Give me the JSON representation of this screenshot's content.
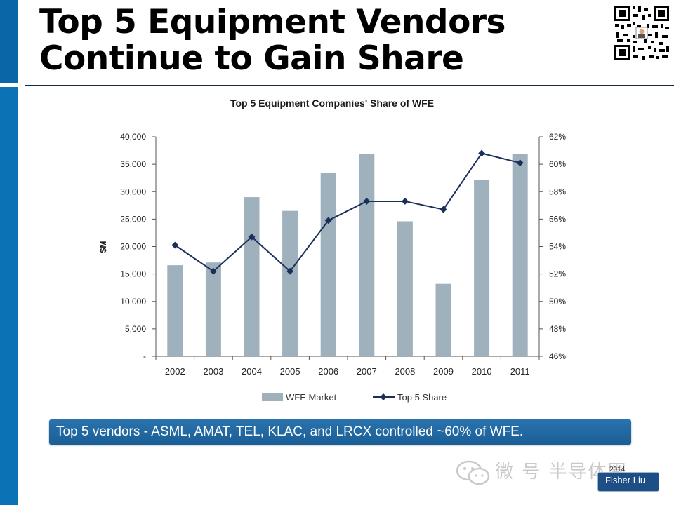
{
  "slide": {
    "title_line1": "Top 5 Equipment Vendors",
    "title_line2": "Continue to Gain Share",
    "banner": "Top 5 vendors - ASML, AMAT, TEL, KLAC, and LRCX controlled ~60% of WFE.",
    "author": "Fisher Liu",
    "watermark": "微 号 半导体圈",
    "watermark_date": "2014",
    "accent_color": "#0b72b5"
  },
  "chart_data": {
    "type": "bar+line",
    "title": "Top 5 Equipment Companies' Share of WFE",
    "ylabel_left": "$M",
    "categories": [
      "2002",
      "2003",
      "2004",
      "2005",
      "2006",
      "2007",
      "2008",
      "2009",
      "2010",
      "2011"
    ],
    "series": [
      {
        "name": "WFE Market",
        "type": "bar",
        "axis": "left",
        "color": "#9fb1bd",
        "values": [
          16600,
          17100,
          29000,
          26500,
          33400,
          36900,
          24600,
          13200,
          32200,
          36900
        ]
      },
      {
        "name": "Top 5 Share",
        "type": "line",
        "axis": "right",
        "color": "#1b2f5a",
        "values": [
          54.1,
          52.2,
          54.7,
          52.2,
          55.9,
          57.3,
          57.3,
          56.7,
          60.8,
          60.1
        ]
      }
    ],
    "left_axis": {
      "ylim": [
        0,
        40000
      ],
      "tick_labels": [
        "-",
        "5,000",
        "10,000",
        "15,000",
        "20,000",
        "25,000",
        "30,000",
        "35,000",
        "40,000"
      ]
    },
    "right_axis": {
      "ylim": [
        46,
        62
      ],
      "tick_labels": [
        "46%",
        "48%",
        "50%",
        "52%",
        "54%",
        "56%",
        "58%",
        "60%",
        "62%"
      ]
    },
    "grid": false,
    "legend_position": "bottom"
  }
}
